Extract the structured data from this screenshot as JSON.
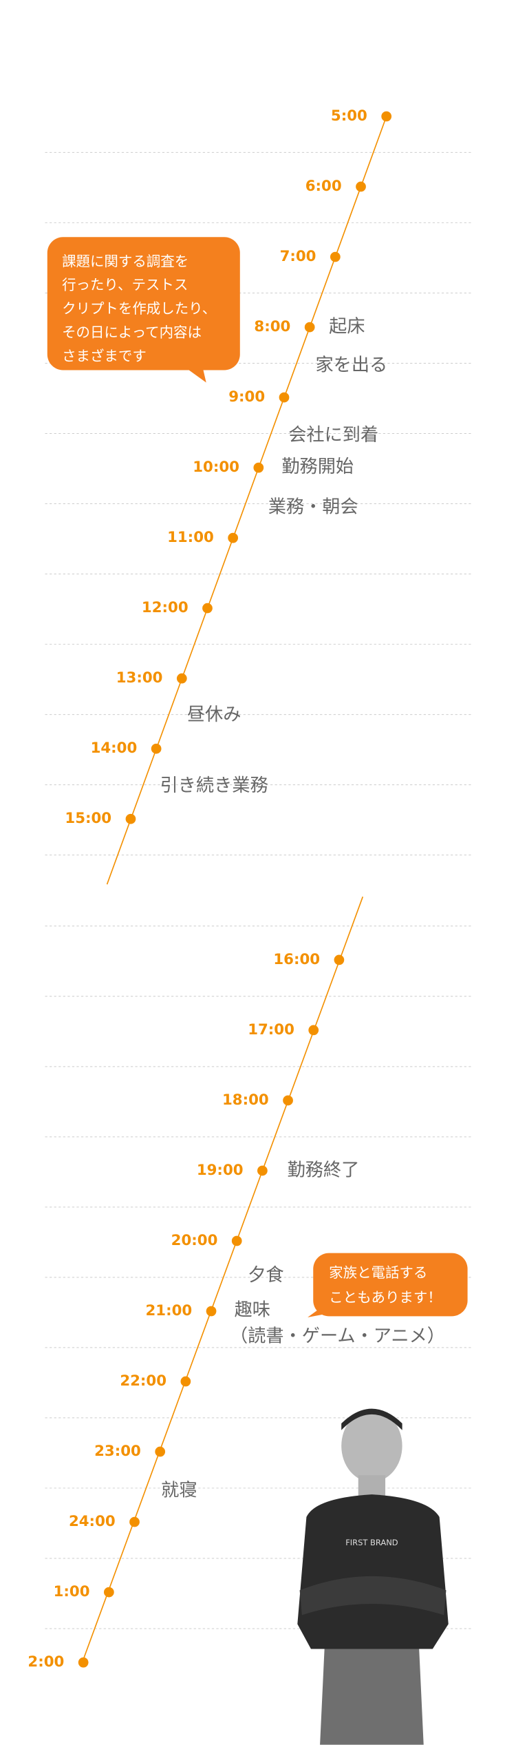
{
  "sections": [
    {
      "times": [
        "5:00",
        "6:00",
        "7:00",
        "8:00",
        "9:00",
        "10:00",
        "11:00",
        "12:00",
        "13:00",
        "14:00",
        "15:00"
      ]
    },
    {
      "times": [
        "16:00",
        "17:00",
        "18:00",
        "19:00",
        "20:00",
        "21:00",
        "22:00",
        "23:00",
        "24:00",
        "1:00",
        "2:00"
      ]
    }
  ],
  "events": [
    "起床",
    "家を出る",
    "会社に到着",
    "勤務開始",
    "業務・朝会",
    "昼休み",
    "引き続き業務",
    "勤務終了",
    "夕食",
    "趣味",
    "（読書・ゲーム・アニメ）",
    "就寝"
  ],
  "notes": [
    [
      "課題に関する調査を",
      "行ったり、テストス",
      "クリプトを作成したり、",
      "その日によって内容は",
      "さまざまです"
    ],
    [
      "家族と電話する",
      "こともあります！"
    ]
  ]
}
